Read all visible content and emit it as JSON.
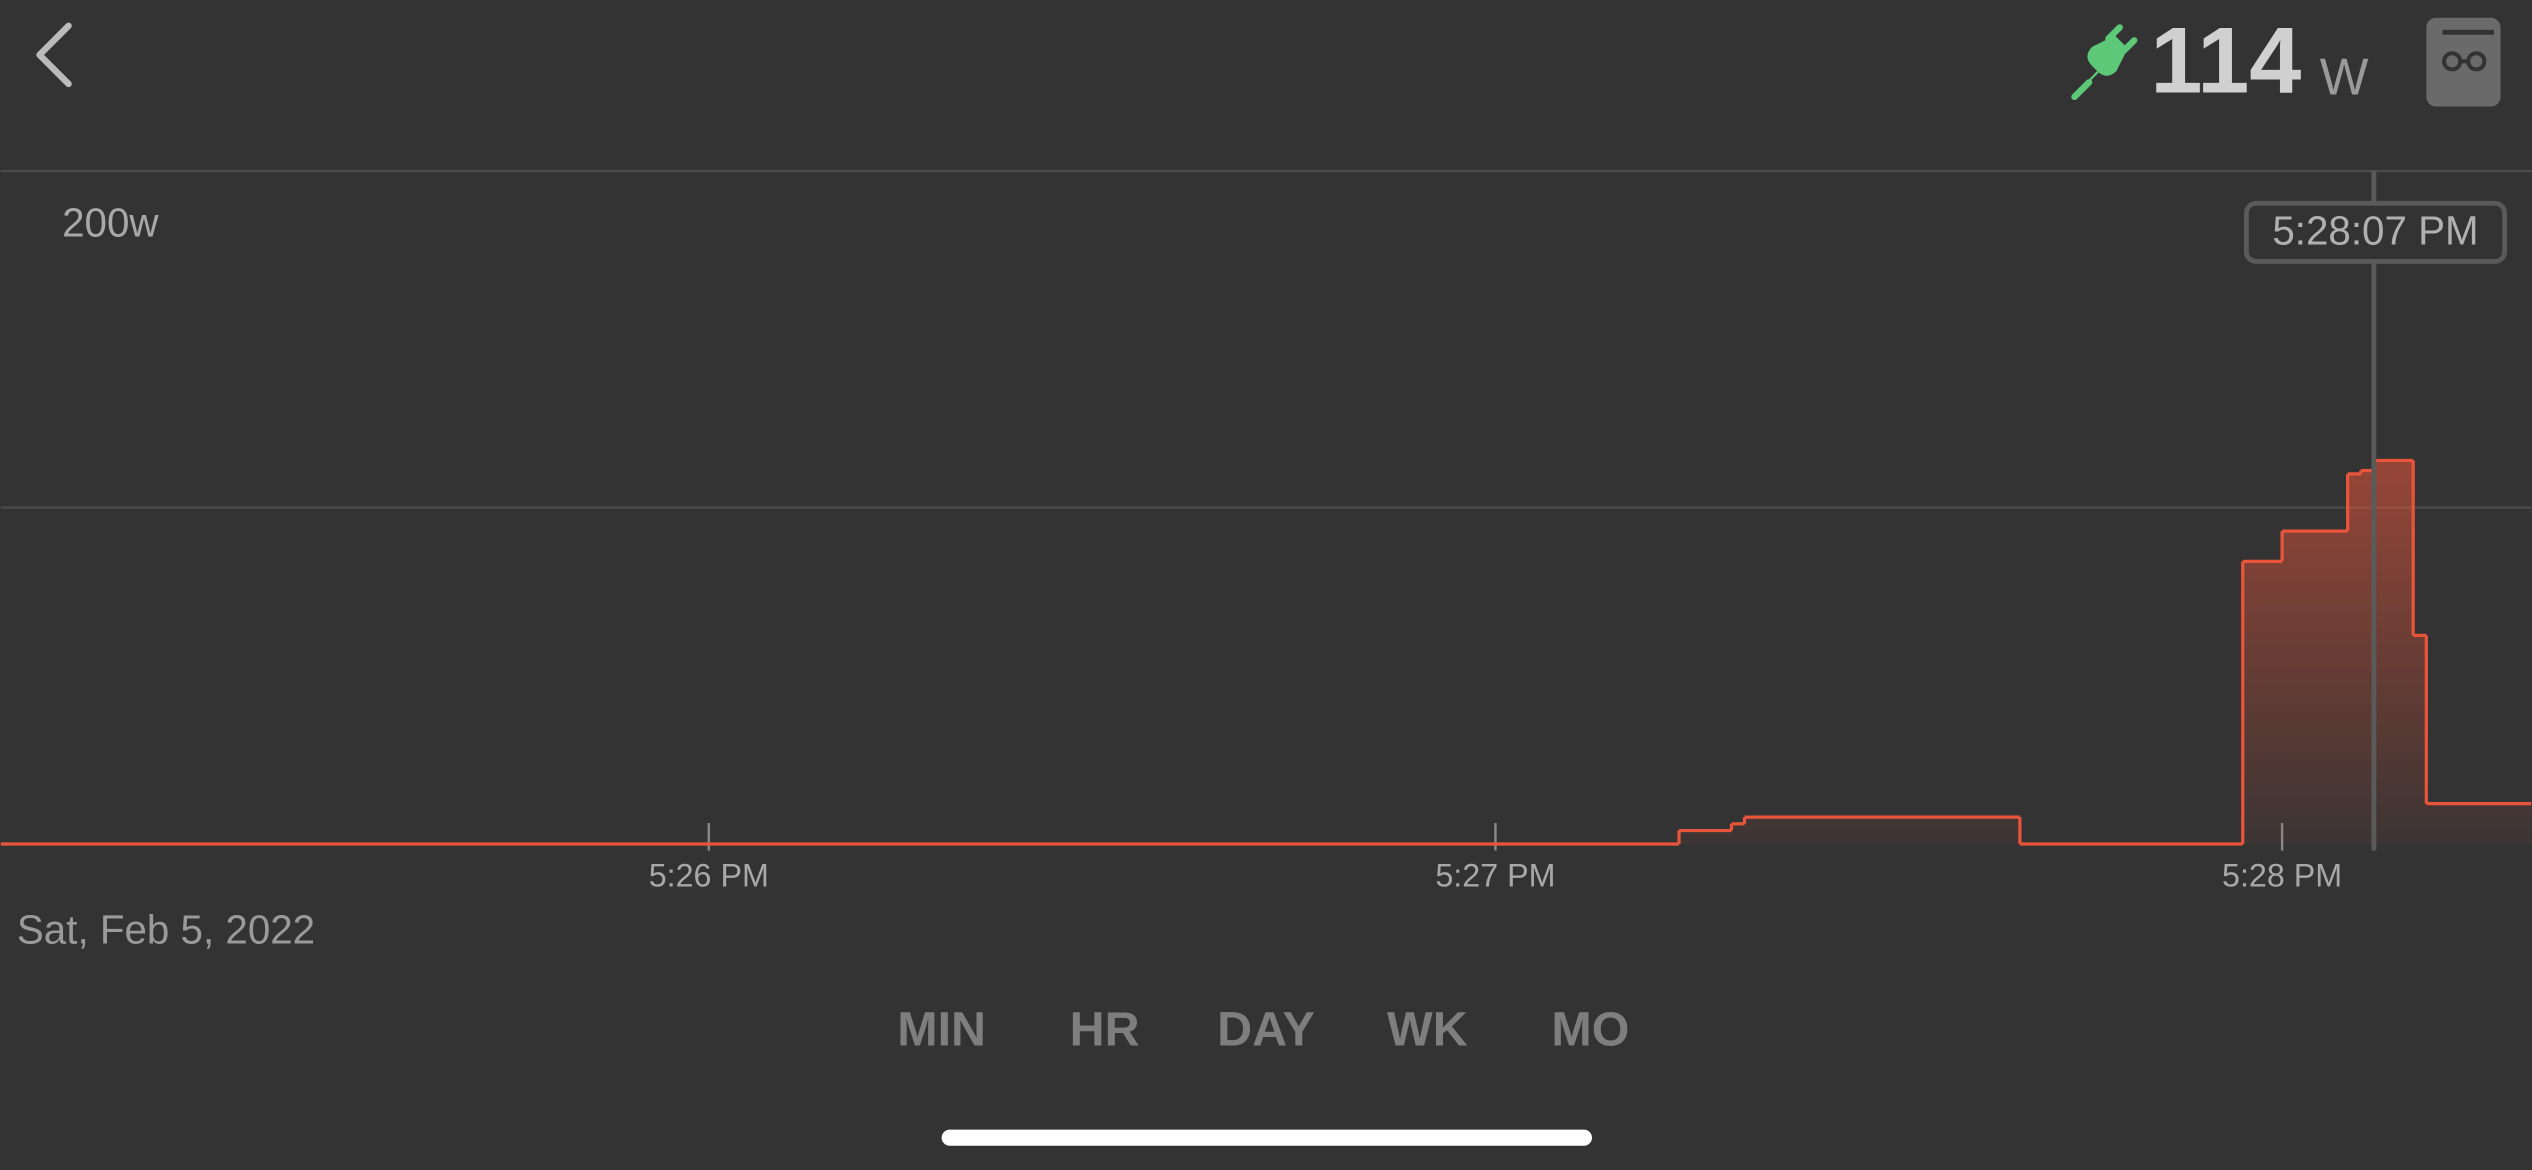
{
  "header": {
    "power": "114",
    "unit": "W"
  },
  "chart_data": {
    "type": "step",
    "date": "Sat, Feb 5, 2022",
    "cursor_label": "5:28:07 PM",
    "x": [
      "5:25:06 PM",
      "5:27:14 PM",
      "5:27:18 PM",
      "5:27:19 PM",
      "5:27:40 PM",
      "5:27:57 PM",
      "5:28:00 PM",
      "5:28:05 PM",
      "5:28:06 PM",
      "5:28:07 PM",
      "5:28:10 PM",
      "5:28:11 PM"
    ],
    "values": [
      0,
      4,
      6,
      8,
      0,
      84,
      93,
      110,
      111,
      114,
      62,
      12
    ],
    "color": "#e8553a",
    "xlim": [
      "5:25:06 PM",
      "5:28:19 PM"
    ],
    "xticks": [
      "5:26 PM",
      "5:27 PM",
      "5:28 PM"
    ],
    "ylim": [
      0,
      200
    ],
    "yticks": [
      {
        "value": 200,
        "label": "200w"
      }
    ],
    "ygrid": [
      100,
      200
    ]
  },
  "tabs": [
    "MIN",
    "HR",
    "DAY",
    "WK",
    "MO"
  ]
}
